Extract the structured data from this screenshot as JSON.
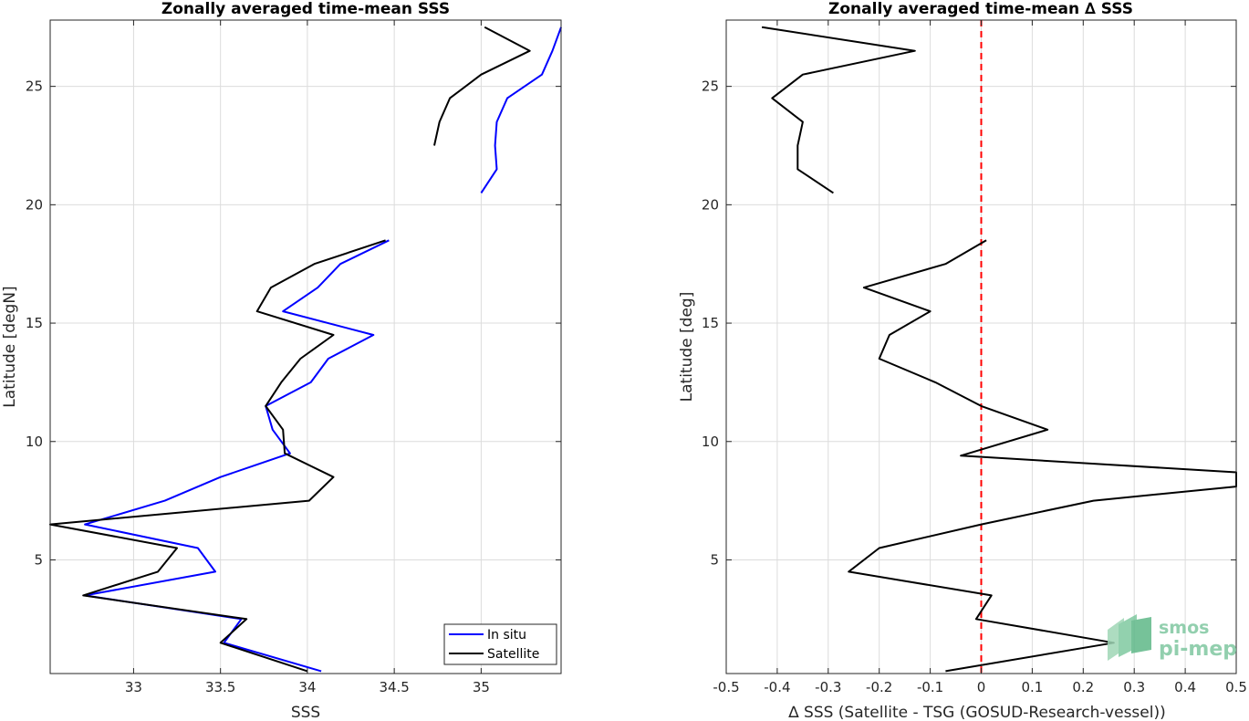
{
  "chart_data": [
    {
      "type": "line",
      "title": "Zonally averaged time-mean SSS",
      "xlabel": "SSS",
      "ylabel": "Latitude [degN]",
      "xlim": [
        32.52,
        35.46
      ],
      "ylim": [
        0.2,
        27.8
      ],
      "xticks": [
        33,
        33.5,
        34,
        34.5,
        35
      ],
      "yticks": [
        5,
        10,
        15,
        20,
        25
      ],
      "grid": true,
      "legend_position": "bottom-right",
      "series": [
        {
          "name": "In situ",
          "color": "#0000ff",
          "segments": [
            [
              [
                34.08,
                0.3
              ],
              [
                33.52,
                1.5
              ],
              [
                33.62,
                2.5
              ],
              [
                32.72,
                3.5
              ],
              [
                33.47,
                4.5
              ],
              [
                33.37,
                5.5
              ],
              [
                32.72,
                6.5
              ],
              [
                33.18,
                7.5
              ],
              [
                33.5,
                8.5
              ],
              [
                33.9,
                9.5
              ],
              [
                33.8,
                10.5
              ],
              [
                33.76,
                11.5
              ],
              [
                34.02,
                12.5
              ],
              [
                34.12,
                13.5
              ],
              [
                34.38,
                14.5
              ],
              [
                33.86,
                15.5
              ],
              [
                34.06,
                16.5
              ],
              [
                34.19,
                17.5
              ],
              [
                34.47,
                18.5
              ]
            ],
            [
              [
                35.0,
                20.5
              ],
              [
                35.09,
                21.5
              ],
              [
                35.08,
                22.5
              ],
              [
                35.09,
                23.5
              ],
              [
                35.15,
                24.5
              ],
              [
                35.35,
                25.5
              ],
              [
                35.41,
                26.5
              ],
              [
                35.46,
                27.5
              ]
            ]
          ]
        },
        {
          "name": "Satellite",
          "color": "#000000",
          "segments": [
            [
              [
                34.0,
                0.3
              ],
              [
                33.5,
                1.5
              ],
              [
                33.65,
                2.5
              ],
              [
                32.71,
                3.5
              ],
              [
                33.14,
                4.5
              ],
              [
                33.25,
                5.5
              ],
              [
                32.52,
                6.5
              ],
              [
                34.01,
                7.5
              ],
              [
                34.15,
                8.5
              ],
              [
                33.87,
                9.5
              ],
              [
                33.86,
                10.5
              ],
              [
                33.76,
                11.5
              ],
              [
                33.85,
                12.5
              ],
              [
                33.96,
                13.5
              ],
              [
                34.15,
                14.5
              ],
              [
                33.71,
                15.5
              ],
              [
                33.79,
                16.5
              ],
              [
                34.04,
                17.5
              ],
              [
                34.45,
                18.5
              ]
            ],
            [
              [
                34.73,
                22.5
              ],
              [
                34.76,
                23.5
              ],
              [
                34.82,
                24.5
              ],
              [
                35.0,
                25.5
              ],
              [
                35.28,
                26.5
              ],
              [
                35.02,
                27.5
              ]
            ]
          ]
        }
      ]
    },
    {
      "type": "line",
      "title": "Zonally averaged time-mean ∆ SSS",
      "xlabel": "∆ SSS (Satellite - TSG (GOSUD-Research-vessel))",
      "ylabel": "Latitude [deg]",
      "xlim": [
        -0.5,
        0.5
      ],
      "ylim": [
        0.2,
        27.8
      ],
      "xticks": [
        -0.5,
        -0.4,
        -0.3,
        -0.2,
        -0.1,
        0,
        0.1,
        0.2,
        0.3,
        0.4,
        0.5
      ],
      "yticks": [
        5,
        10,
        15,
        20,
        25
      ],
      "grid": true,
      "reference_line": {
        "x": 0,
        "color": "#ff0000",
        "style": "dashed"
      },
      "series": [
        {
          "name": "",
          "color": "#000000",
          "segments": [
            [
              [
                -0.07,
                0.3
              ],
              [
                0.26,
                1.5
              ],
              [
                -0.01,
                2.5
              ],
              [
                0.02,
                3.5
              ],
              [
                -0.26,
                4.5
              ],
              [
                -0.2,
                5.5
              ],
              [
                0.0,
                6.5
              ],
              [
                0.22,
                7.5
              ],
              [
                0.5,
                8.1
              ],
              [
                0.5,
                8.7
              ],
              [
                -0.04,
                9.4
              ],
              [
                0.13,
                10.5
              ],
              [
                0.0,
                11.5
              ],
              [
                -0.09,
                12.5
              ],
              [
                -0.2,
                13.5
              ],
              [
                -0.18,
                14.5
              ],
              [
                -0.1,
                15.5
              ],
              [
                -0.23,
                16.5
              ],
              [
                -0.07,
                17.5
              ],
              [
                0.01,
                18.5
              ]
            ],
            [
              [
                -0.29,
                20.5
              ],
              [
                -0.36,
                21.5
              ],
              [
                -0.36,
                22.5
              ],
              [
                -0.35,
                23.5
              ],
              [
                -0.41,
                24.5
              ],
              [
                -0.35,
                25.5
              ],
              [
                -0.13,
                26.5
              ],
              [
                -0.43,
                27.5
              ]
            ]
          ]
        }
      ]
    }
  ],
  "watermark": {
    "line1": "smos",
    "line2": "pi-mep"
  }
}
